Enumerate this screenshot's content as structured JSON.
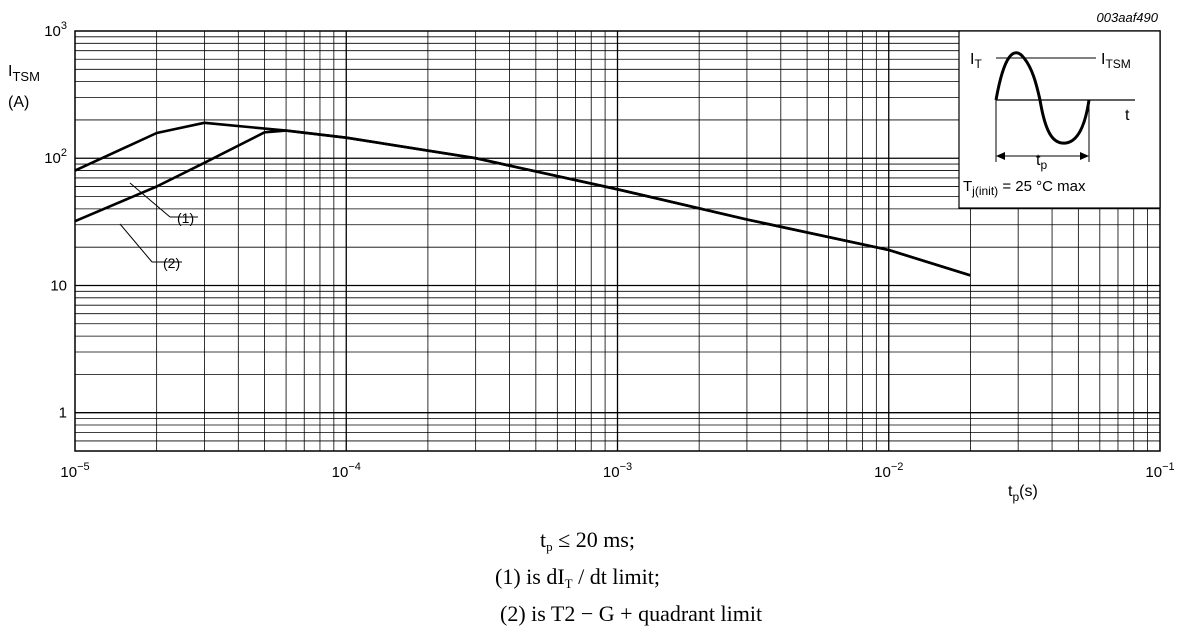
{
  "chart_data": {
    "type": "line",
    "figure_code": "003aaf490",
    "ylabel": "I",
    "ylabel_sub": "TSM",
    "yunit": "(A)",
    "xlabel": "t",
    "xlabel_sub": "p",
    "xunit": "(s)",
    "xscale": "log",
    "yscale": "log",
    "xlim": [
      1e-05,
      0.1
    ],
    "ylim": [
      0.5,
      1000
    ],
    "grid": true,
    "x_ticks": [
      {
        "value": 1e-05,
        "base": "10",
        "exp": "−5"
      },
      {
        "value": 0.0001,
        "base": "10",
        "exp": "−4"
      },
      {
        "value": 0.001,
        "base": "10",
        "exp": "−3"
      },
      {
        "value": 0.01,
        "base": "10",
        "exp": "−2"
      },
      {
        "value": 0.1,
        "base": "10",
        "exp": "−1"
      }
    ],
    "y_ticks": [
      {
        "value": 1000,
        "base": "10",
        "exp": "3"
      },
      {
        "value": 100,
        "base": "10",
        "exp": "2"
      },
      {
        "value": 10,
        "base": "10",
        "exp": ""
      },
      {
        "value": 1,
        "base": "1",
        "exp": ""
      }
    ],
    "series": [
      {
        "name": "(1)",
        "x": [
          1e-05,
          2e-05,
          3e-05,
          6e-05,
          0.0001,
          0.0003,
          0.001,
          0.003,
          0.01,
          0.02
        ],
        "y": [
          80,
          158,
          190,
          165,
          145,
          100,
          57,
          33,
          19,
          12
        ]
      },
      {
        "name": "(2)",
        "x": [
          1e-05,
          2e-05,
          3e-05,
          5e-05,
          6e-05,
          0.0001,
          0.0003,
          0.001,
          0.003,
          0.01,
          0.02
        ],
        "y": [
          32,
          60,
          92,
          160,
          165,
          145,
          100,
          57,
          33,
          19,
          12
        ]
      }
    ],
    "inset": {
      "current_label": "I",
      "current_sub": "T",
      "peak_label": "I",
      "peak_sub": "TSM",
      "time_label": "t",
      "pulse_label": "t",
      "pulse_sub": "p",
      "temp_label": "T",
      "temp_sub": "j(init)",
      "temp_text": " = 25 °C max"
    }
  },
  "caption": {
    "line1_pre": "t",
    "line1_sub": "p",
    "line1_post": " ≤ 20 ms;",
    "line2_pre": "(1) is dI",
    "line2_sub": "T",
    "line2_post": " / dt limit;",
    "line3": "(2) is T2  − G + quadrant limit"
  }
}
